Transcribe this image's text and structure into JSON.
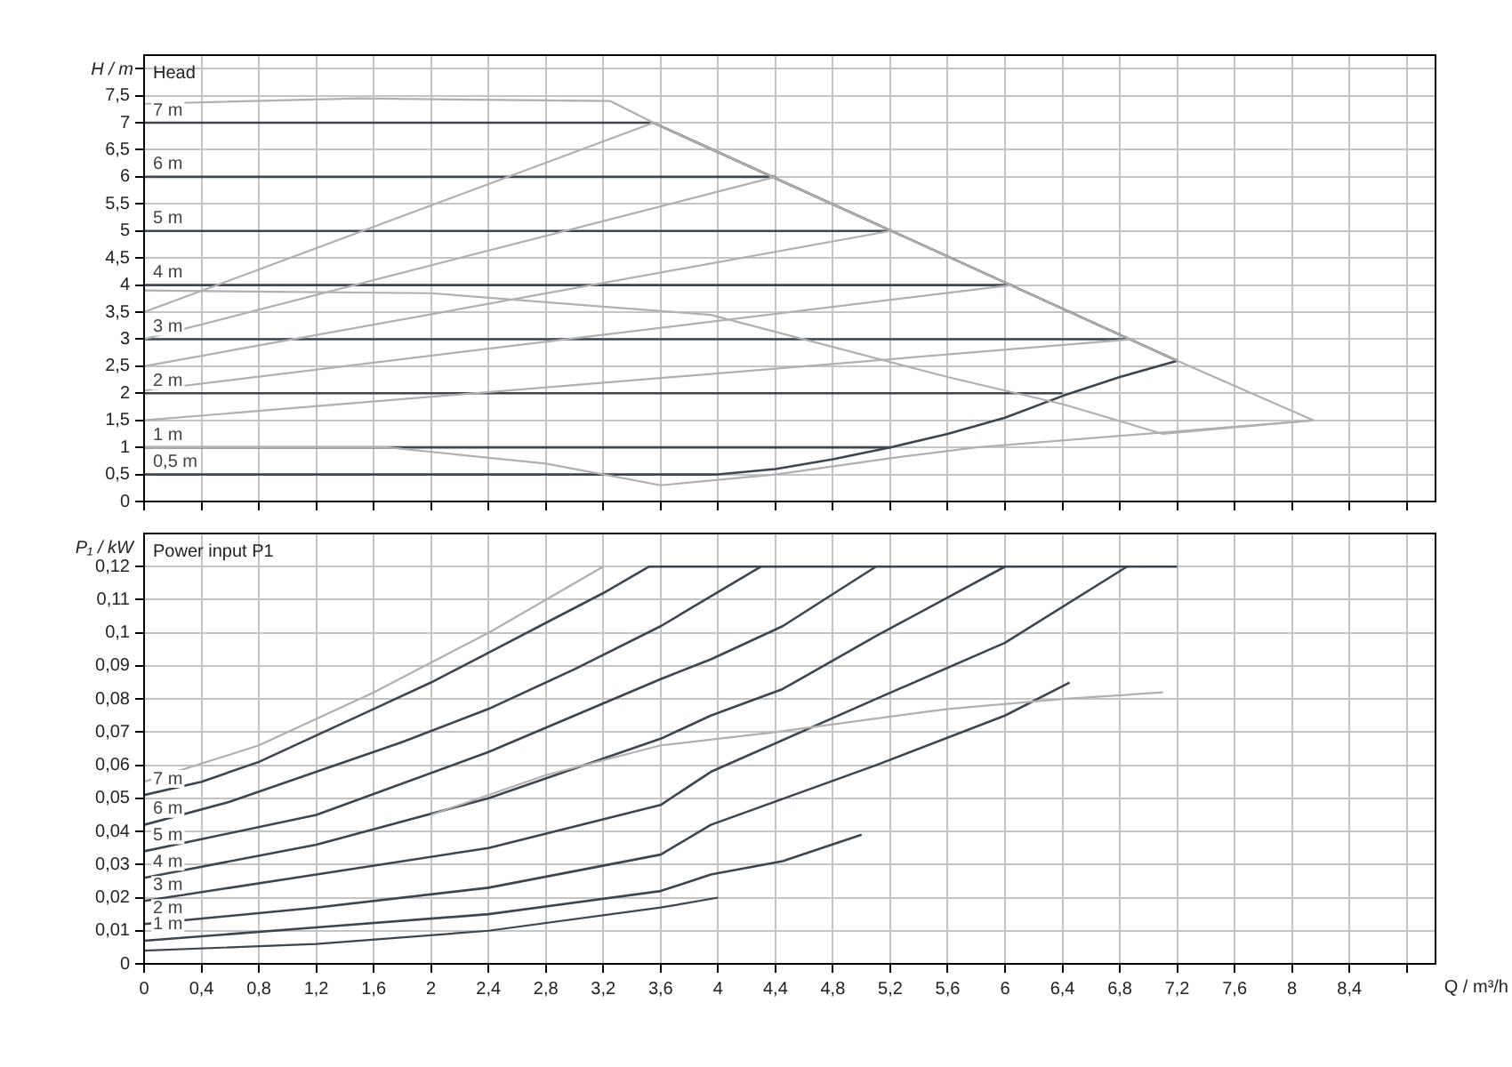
{
  "chart_data": [
    {
      "type": "line",
      "title": "Head",
      "ylabel": "H / m",
      "legend": false,
      "grid": true,
      "marker": "none",
      "tick_labels": "y",
      "xlim": [
        0,
        9
      ],
      "xticks": [
        {
          "value": 0,
          "label": null
        },
        {
          "value": 0.4,
          "label": null
        },
        {
          "value": 0.8,
          "label": null
        },
        {
          "value": 1.2,
          "label": null
        },
        {
          "value": 1.6,
          "label": null
        },
        {
          "value": 2,
          "label": null
        },
        {
          "value": 2.4,
          "label": null
        },
        {
          "value": 2.8,
          "label": null
        },
        {
          "value": 3.2,
          "label": null
        },
        {
          "value": 3.6,
          "label": null
        },
        {
          "value": 4,
          "label": null
        },
        {
          "value": 4.4,
          "label": null
        },
        {
          "value": 4.8,
          "label": null
        },
        {
          "value": 5.2,
          "label": null
        },
        {
          "value": 5.6,
          "label": null
        },
        {
          "value": 6,
          "label": null
        },
        {
          "value": 6.4,
          "label": null
        },
        {
          "value": 6.8,
          "label": null
        },
        {
          "value": 7.2,
          "label": null
        },
        {
          "value": 7.6,
          "label": null
        },
        {
          "value": 8,
          "label": null
        },
        {
          "value": 8.4,
          "label": null
        },
        {
          "value": 8.8,
          "label": null
        }
      ],
      "ylim": [
        0,
        8.25
      ],
      "yticks": [
        0,
        {
          "value": 0.5,
          "label": "0,5"
        },
        1,
        {
          "value": 1.5,
          "label": "1,5"
        },
        2,
        {
          "value": 2.5,
          "label": "2,5"
        },
        3,
        {
          "value": 3.5,
          "label": "3,5"
        },
        4,
        {
          "value": 4.5,
          "label": "4,5"
        },
        5,
        {
          "value": 5.5,
          "label": "5,5"
        },
        6,
        {
          "value": 6.5,
          "label": "6,5"
        },
        7,
        {
          "value": 7.5,
          "label": "7,5"
        },
        {
          "value": 8,
          "label": null
        }
      ],
      "series": [
        {
          "color": "#b0b0b0",
          "x": [
            0,
            1.5,
            3.25,
            3.55,
            7.2,
            8.15
          ],
          "values": [
            7.35,
            7.45,
            7.4,
            7,
            2.6,
            1.5
          ]
        },
        {
          "color": "#b0b0b0",
          "x": [
            0,
            2,
            3.2,
            3.95,
            5.6,
            6.4,
            7.1,
            8.15
          ],
          "values": [
            3.9,
            3.85,
            3.6,
            3.45,
            2.3,
            1.8,
            1.25,
            1.5
          ]
        },
        {
          "color": "#b0b0b0",
          "x": [
            0,
            1.7,
            2.8,
            3.6,
            4.4,
            5.2,
            5.8,
            8.15
          ],
          "values": [
            1,
            1,
            0.7,
            0.3,
            0.5,
            0.8,
            1,
            1.5
          ]
        },
        {
          "color": "#b0b0b0",
          "x": [
            0,
            3.55
          ],
          "values": [
            3.5,
            7
          ]
        },
        {
          "color": "#b0b0b0",
          "x": [
            0,
            4.4
          ],
          "values": [
            3,
            6
          ]
        },
        {
          "color": "#b0b0b0",
          "x": [
            0,
            5.2
          ],
          "values": [
            2.5,
            5
          ]
        },
        {
          "color": "#b0b0b0",
          "x": [
            0,
            6.05
          ],
          "values": [
            2.05,
            4
          ]
        },
        {
          "color": "#b0b0b0",
          "x": [
            0,
            6.9
          ],
          "values": [
            1.5,
            3
          ]
        },
        {
          "name": "7 m",
          "color": "#3c4550",
          "x": [
            0,
            3.55,
            7.2
          ],
          "values": [
            7,
            7,
            2.6
          ]
        },
        {
          "name": "6 m",
          "color": "#3c4550",
          "x": [
            0,
            4.4
          ],
          "values": [
            6,
            6
          ]
        },
        {
          "name": "5 m",
          "color": "#3c4550",
          "x": [
            0,
            5.2
          ],
          "values": [
            5,
            5
          ]
        },
        {
          "name": "4 m",
          "color": "#3c4550",
          "x": [
            0,
            6.05
          ],
          "values": [
            4,
            4
          ]
        },
        {
          "name": "3 m",
          "color": "#3c4550",
          "x": [
            0,
            6.85
          ],
          "values": [
            3,
            3
          ]
        },
        {
          "name": "2 m",
          "color": "#3c4550",
          "x": [
            0,
            6.4
          ],
          "values": [
            2,
            2
          ]
        },
        {
          "name": "1 m",
          "color": "#3c4550",
          "x": [
            0,
            5.2
          ],
          "values": [
            1,
            1
          ]
        },
        {
          "name": "0,5 m",
          "color": "#3c4550",
          "x": [
            0,
            4,
            4.4,
            4.8,
            5.2,
            5.6,
            6,
            6.4,
            6.8,
            7.2
          ],
          "values": [
            0.5,
            0.5,
            0.6,
            0.78,
            1,
            1.25,
            1.55,
            1.95,
            2.3,
            2.6
          ]
        }
      ]
    },
    {
      "type": "line",
      "title": "Power input P1",
      "ylabel": "P₁ / kW",
      "xlabel": "Q / m³/h",
      "legend": false,
      "grid": true,
      "marker": "none",
      "xlim": [
        0,
        9
      ],
      "xticks": [
        0,
        {
          "value": 0.4,
          "label": "0,4"
        },
        {
          "value": 0.8,
          "label": "0,8"
        },
        {
          "value": 1.2,
          "label": "1,2"
        },
        {
          "value": 1.6,
          "label": "1,6"
        },
        2,
        {
          "value": 2.4,
          "label": "2,4"
        },
        {
          "value": 2.8,
          "label": "2,8"
        },
        {
          "value": 3.2,
          "label": "3,2"
        },
        {
          "value": 3.6,
          "label": "3,6"
        },
        4,
        {
          "value": 4.4,
          "label": "4,4"
        },
        {
          "value": 4.8,
          "label": "4,8"
        },
        {
          "value": 5.2,
          "label": "5,2"
        },
        {
          "value": 5.6,
          "label": "5,6"
        },
        6,
        {
          "value": 6.4,
          "label": "6,4"
        },
        {
          "value": 6.8,
          "label": "6,8"
        },
        {
          "value": 7.2,
          "label": "7,2"
        },
        {
          "value": 7.6,
          "label": "7,6"
        },
        8,
        {
          "value": 8.4,
          "label": "8,4"
        },
        {
          "value": 8.8,
          "label": null
        }
      ],
      "ylim": [
        0,
        0.13
      ],
      "yticks": [
        0,
        {
          "value": 0.01,
          "label": "0,01"
        },
        {
          "value": 0.02,
          "label": "0,02"
        },
        {
          "value": 0.03,
          "label": "0,03"
        },
        {
          "value": 0.04,
          "label": "0,04"
        },
        {
          "value": 0.05,
          "label": "0,05"
        },
        {
          "value": 0.06,
          "label": "0,06"
        },
        {
          "value": 0.07,
          "label": "0,07"
        },
        {
          "value": 0.08,
          "label": "0,08"
        },
        {
          "value": 0.09,
          "label": "0,09"
        },
        {
          "value": 0.1,
          "label": "0,1"
        },
        {
          "value": 0.11,
          "label": "0,11"
        },
        {
          "value": 0.12,
          "label": "0,12"
        }
      ],
      "series": [
        {
          "color": "#b0b0b0",
          "x": [
            0,
            0.8,
            1.6,
            2.4,
            3.2
          ],
          "values": [
            0.055,
            0.066,
            0.082,
            0.1,
            0.12
          ]
        },
        {
          "color": "#b0b0b0",
          "x": [
            2,
            2.8,
            3.6,
            4.4,
            5.6,
            6.4,
            7.1
          ],
          "values": [
            0.045,
            0.057,
            0.066,
            0.07,
            0.077,
            0.08,
            0.082
          ]
        },
        {
          "name": "7 m",
          "color": "#3c4550",
          "x": [
            0,
            0.4,
            0.8,
            1.2,
            1.6,
            2,
            2.4,
            2.8,
            3.2,
            3.52,
            7.2
          ],
          "values": [
            0.051,
            0.055,
            0.061,
            0.069,
            0.077,
            0.085,
            0.094,
            0.103,
            0.112,
            0.12,
            0.12
          ]
        },
        {
          "name": "6 m",
          "color": "#3c4550",
          "x": [
            0,
            0.6,
            1.2,
            1.8,
            2.4,
            3,
            3.6,
            4.3
          ],
          "values": [
            0.042,
            0.049,
            0.058,
            0.067,
            0.077,
            0.089,
            0.102,
            0.12
          ]
        },
        {
          "name": "5 m",
          "color": "#3c4550",
          "x": [
            0,
            1.2,
            2.4,
            3.6,
            3.95,
            4.45,
            5.1
          ],
          "values": [
            0.034,
            0.045,
            0.064,
            0.086,
            0.092,
            0.102,
            0.12
          ]
        },
        {
          "name": "4 m",
          "color": "#3c4550",
          "x": [
            0,
            1.2,
            2.4,
            3.6,
            3.95,
            4.45,
            5.1,
            6
          ],
          "values": [
            0.026,
            0.036,
            0.05,
            0.068,
            0.075,
            0.083,
            0.099,
            0.12
          ]
        },
        {
          "name": "3 m",
          "color": "#3c4550",
          "x": [
            0,
            1.2,
            2.4,
            3.6,
            3.95,
            5.1,
            6,
            6.85
          ],
          "values": [
            0.019,
            0.027,
            0.035,
            0.048,
            0.058,
            0.08,
            0.097,
            0.12
          ]
        },
        {
          "name": "2 m",
          "color": "#3c4550",
          "x": [
            0,
            1.2,
            2.4,
            3.6,
            3.95,
            5.1,
            6,
            6.45
          ],
          "values": [
            0.012,
            0.017,
            0.023,
            0.033,
            0.042,
            0.06,
            0.075,
            0.085
          ]
        },
        {
          "name": "1 m",
          "color": "#3c4550",
          "x": [
            0,
            1.2,
            2.4,
            3.6,
            3.95,
            4.45,
            5
          ],
          "values": [
            0.007,
            0.011,
            0.015,
            0.022,
            0.027,
            0.031,
            0.039
          ]
        },
        {
          "color": "#3c4550",
          "x": [
            0,
            1.2,
            2.4,
            3.6,
            4
          ],
          "values": [
            0.004,
            0.006,
            0.01,
            0.017,
            0.02
          ]
        }
      ]
    }
  ]
}
